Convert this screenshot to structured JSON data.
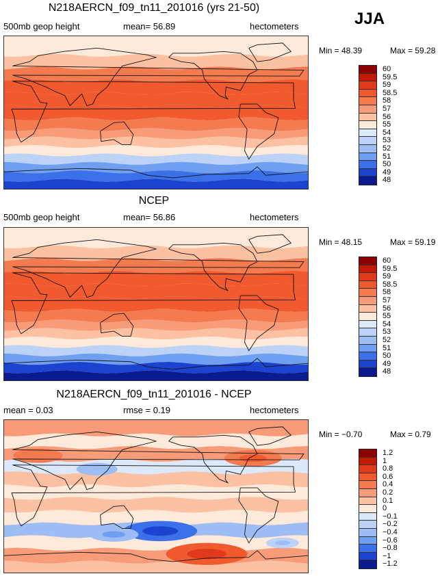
{
  "season": "JJA",
  "chart_data": [
    {
      "type": "heatmap",
      "title": "N218AERCN_f09_tn11_201016 (yrs 21-50)",
      "left_subtitle": "500mb  geop height",
      "center_subtitle": "mean=   56.89",
      "units": "hectometers",
      "min_label": "Min =   48.39",
      "max_label": "Max =   59.28",
      "min": 48.39,
      "max": 59.28,
      "mean": 56.89,
      "levels": [
        "60",
        "59.5",
        "59",
        "58.5",
        "58",
        "57",
        "56",
        "55",
        "54",
        "53",
        "52",
        "51",
        "50",
        "49",
        "48"
      ],
      "colors": [
        "#8b0000",
        "#c21a00",
        "#e0391c",
        "#f1592e",
        "#f47a50",
        "#f89b78",
        "#fcc0a2",
        "#fdeadb",
        "#dce9fa",
        "#bcd2f6",
        "#9ebdf5",
        "#6f9ff0",
        "#3b70e8",
        "#1b43cf",
        "#0a1a8f"
      ],
      "bands": [
        {
          "lat": 75,
          "value": 55.6
        },
        {
          "lat": 60,
          "value": 56.9
        },
        {
          "lat": 45,
          "value": 58.1
        },
        {
          "lat": 30,
          "value": 58.8
        },
        {
          "lat": 15,
          "value": 58.7
        },
        {
          "lat": 0,
          "value": 58.6
        },
        {
          "lat": -15,
          "value": 58.4
        },
        {
          "lat": -25,
          "value": 57.7
        },
        {
          "lat": -35,
          "value": 56.8
        },
        {
          "lat": -45,
          "value": 55.3
        },
        {
          "lat": -55,
          "value": 53.2
        },
        {
          "lat": -65,
          "value": 51.4
        },
        {
          "lat": -75,
          "value": 50.1
        },
        {
          "lat": -85,
          "value": 49.0
        }
      ]
    },
    {
      "type": "heatmap",
      "title": "NCEP",
      "left_subtitle": "500mb  geop height",
      "center_subtitle": "mean=   56.86",
      "units": "hectometers",
      "min_label": "Min =   48.15",
      "max_label": "Max =   59.19",
      "min": 48.15,
      "max": 59.19,
      "mean": 56.86,
      "levels": [
        "60",
        "59.5",
        "59",
        "58.5",
        "58",
        "57",
        "56",
        "55",
        "54",
        "53",
        "52",
        "51",
        "50",
        "49",
        "48"
      ],
      "colors": [
        "#8b0000",
        "#c21a00",
        "#e0391c",
        "#f1592e",
        "#f47a50",
        "#f89b78",
        "#fcc0a2",
        "#fdeadb",
        "#dce9fa",
        "#bcd2f6",
        "#9ebdf5",
        "#6f9ff0",
        "#3b70e8",
        "#1b43cf",
        "#0a1a8f"
      ],
      "bands": [
        {
          "lat": 75,
          "value": 55.5
        },
        {
          "lat": 60,
          "value": 56.9
        },
        {
          "lat": 45,
          "value": 58.0
        },
        {
          "lat": 30,
          "value": 58.8
        },
        {
          "lat": 15,
          "value": 58.7
        },
        {
          "lat": 0,
          "value": 58.6
        },
        {
          "lat": -15,
          "value": 58.3
        },
        {
          "lat": -25,
          "value": 57.6
        },
        {
          "lat": -35,
          "value": 56.7
        },
        {
          "lat": -45,
          "value": 55.2
        },
        {
          "lat": -55,
          "value": 53.0
        },
        {
          "lat": -65,
          "value": 51.2
        },
        {
          "lat": -75,
          "value": 49.9
        },
        {
          "lat": -85,
          "value": 48.8
        }
      ]
    },
    {
      "type": "heatmap",
      "title": "N218AERCN_f09_tn11_201016 - NCEP",
      "left_subtitle": "mean =    0.03",
      "center_subtitle": "rmse =    0.19",
      "units": "hectometers",
      "min_label": "Min =  −0.70",
      "max_label": "Max =    0.79",
      "min": -0.7,
      "max": 0.79,
      "mean": 0.03,
      "rmse": 0.19,
      "levels": [
        "1.2",
        "1",
        "0.8",
        "0.6",
        "0.4",
        "0.2",
        "0.1",
        "0",
        "−0.1",
        "−0.2",
        "−0.4",
        "−0.6",
        "−0.8",
        "−1",
        "−1.2"
      ],
      "colors": [
        "#8b0000",
        "#c21a00",
        "#e0391c",
        "#f1592e",
        "#f47a50",
        "#f89b78",
        "#fcc0a2",
        "#fdeadb",
        "#dce9fa",
        "#bcd2f6",
        "#9ebdf5",
        "#6f9ff0",
        "#3b70e8",
        "#1b43cf",
        "#0a1a8f"
      ],
      "bands": [
        {
          "lat": 80,
          "value": 0.35
        },
        {
          "lat": 65,
          "value": 0.05
        },
        {
          "lat": 50,
          "value": 0.25
        },
        {
          "lat": 35,
          "value": -0.1
        },
        {
          "lat": 20,
          "value": 0.15
        },
        {
          "lat": 5,
          "value": 0.05
        },
        {
          "lat": -10,
          "value": 0.1
        },
        {
          "lat": -25,
          "value": 0.0
        },
        {
          "lat": -40,
          "value": -0.25
        },
        {
          "lat": -55,
          "value": 0.05
        },
        {
          "lat": -70,
          "value": 0.3
        },
        {
          "lat": -85,
          "value": 0.15
        }
      ],
      "anomalies": [
        {
          "lon": 185,
          "lat": -41,
          "value": -0.7
        },
        {
          "lon": 130,
          "lat": -45,
          "value": -0.4
        },
        {
          "lon": 240,
          "lat": -68,
          "value": 0.79
        },
        {
          "lon": 295,
          "lat": 45,
          "value": 0.5
        },
        {
          "lon": 40,
          "lat": 48,
          "value": 0.4
        },
        {
          "lon": 110,
          "lat": 32,
          "value": -0.3
        },
        {
          "lon": 330,
          "lat": -55,
          "value": -0.2
        }
      ]
    }
  ]
}
